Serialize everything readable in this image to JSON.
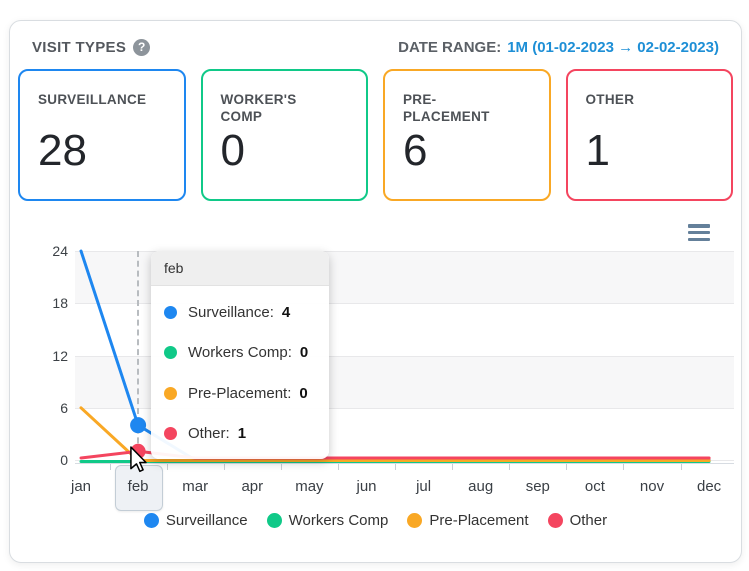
{
  "panel": {
    "title": "VISIT TYPES",
    "date_range_label": "DATE RANGE:",
    "date_range_value": "1M (01-02-2023 → 02-02-2023)"
  },
  "cards": [
    {
      "label": "SURVEILLANCE",
      "value": "28",
      "color": "#1e87f0"
    },
    {
      "label": "WORKER'S COMP",
      "value": "0",
      "color": "#10c988"
    },
    {
      "label": "PRE-PLACEMENT",
      "value": "6",
      "color": "#f9a825"
    },
    {
      "label": "OTHER",
      "value": "1",
      "color": "#f4455f"
    }
  ],
  "chart_data": {
    "type": "line",
    "categories": [
      "jan",
      "feb",
      "mar",
      "apr",
      "may",
      "jun",
      "jul",
      "aug",
      "sep",
      "oct",
      "nov",
      "dec"
    ],
    "series": [
      {
        "name": "Surveillance",
        "color": "#1e87f0",
        "values": [
          24,
          4,
          0,
          0,
          0,
          0,
          0,
          0,
          0,
          0,
          0,
          0
        ]
      },
      {
        "name": "Workers Comp",
        "color": "#10c988",
        "values": [
          0,
          0,
          0,
          0,
          0,
          0,
          0,
          0,
          0,
          0,
          0,
          0
        ]
      },
      {
        "name": "Pre-Placement",
        "color": "#f9a825",
        "values": [
          6,
          0,
          0,
          0,
          0,
          0,
          0,
          0,
          0,
          0,
          0,
          0
        ]
      },
      {
        "name": "Other",
        "color": "#f4455f",
        "values": [
          0,
          1,
          0,
          0,
          0,
          0,
          0,
          0,
          0,
          0,
          0,
          0
        ]
      }
    ],
    "ylim": [
      0,
      24
    ],
    "yticks": [
      0,
      6,
      12,
      18,
      24
    ],
    "grid": "horizontal gridlines with alternating shaded bands",
    "legend_position": "bottom-center",
    "highlighted_category": "feb"
  },
  "tooltip": {
    "title": "feb",
    "rows": [
      {
        "label": "Surveillance:",
        "value": "4",
        "color": "#1e87f0"
      },
      {
        "label": "Workers Comp:",
        "value": "0",
        "color": "#10c988"
      },
      {
        "label": "Pre-Placement:",
        "value": "0",
        "color": "#f9a825"
      },
      {
        "label": "Other:",
        "value": "1",
        "color": "#f4455f"
      }
    ]
  }
}
